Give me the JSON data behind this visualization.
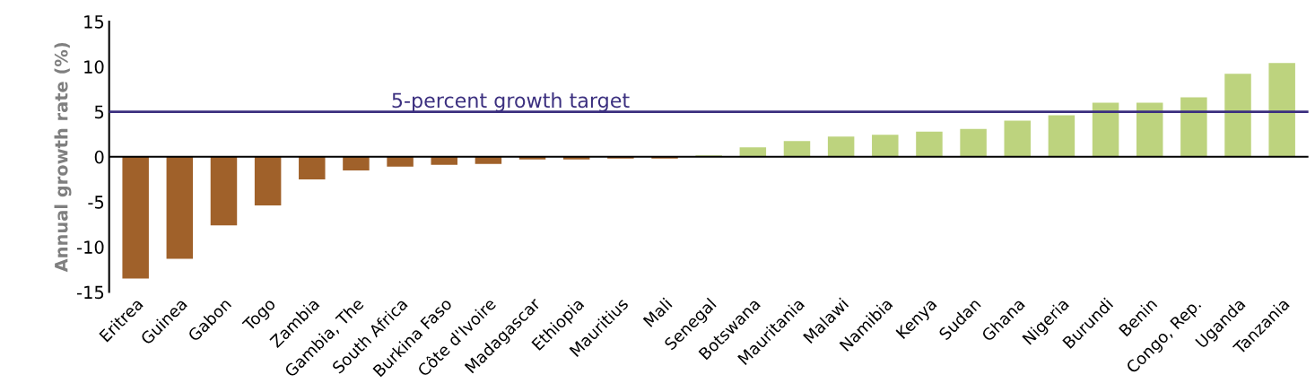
{
  "chart_data": {
    "type": "bar",
    "ylabel": "Annual growth rate (%)",
    "categories": [
      "Eritrea",
      "Guinea",
      "Gabon",
      "Togo",
      "Zambia",
      "Gambia, The",
      "South Africa",
      "Burkina Faso",
      "Côte d'Ivoire",
      "Madagascar",
      "Ethiopia",
      "Mauritius",
      "Mali",
      "Senegal",
      "Botswana",
      "Mauritania",
      "Malawi",
      "Namibia",
      "Kenya",
      "Sudan",
      "Ghana",
      "Nigeria",
      "Burundi",
      "Benin",
      "Congo, Rep.",
      "Uganda",
      "Tanzania"
    ],
    "values": [
      -13.5,
      -11.3,
      -7.6,
      -5.4,
      -2.5,
      -1.5,
      -1.1,
      -0.9,
      -0.8,
      -0.3,
      -0.3,
      -0.2,
      -0.2,
      0.15,
      1.05,
      1.75,
      2.25,
      2.45,
      2.8,
      3.1,
      4.0,
      4.6,
      6.0,
      6.0,
      6.6,
      9.2,
      10.4
    ],
    "colors": [
      "#a0612a",
      "#a0612a",
      "#a0612a",
      "#a0612a",
      "#a0612a",
      "#a0612a",
      "#a0612a",
      "#a0612a",
      "#a0612a",
      "#a0612a",
      "#a0612a",
      "#a0612a",
      "#a0612a",
      "#bdd37e",
      "#bdd37e",
      "#bdd37e",
      "#bdd37e",
      "#bdd37e",
      "#bdd37e",
      "#bdd37e",
      "#bdd37e",
      "#bdd37e",
      "#bdd37e",
      "#bdd37e",
      "#bdd37e",
      "#bdd37e",
      "#bdd37e"
    ],
    "ylim": [
      -15,
      15
    ],
    "yticks": [
      -15,
      -10,
      -5,
      0,
      5,
      10,
      15
    ],
    "ref_lines": [
      {
        "axis": "y",
        "value": 5,
        "label": "5-percent growth target",
        "color": "#3b2f7f"
      }
    ],
    "grid": false,
    "legend": false
  }
}
